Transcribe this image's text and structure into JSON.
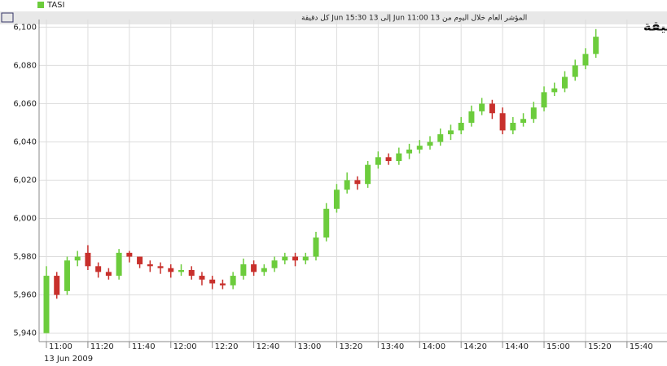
{
  "chart_data": {
    "type": "candlestick",
    "legend": "TASI",
    "subtitle": "المؤشر العام خلال اليوم  من 13 Jun 11:00 إلى 13 Jun 15:30  كل دقيقة",
    "title": "اداء المؤشر العام خلال جلسة أمس(شموع) كل دقيقة",
    "date_label": "13 Jun 2009",
    "up_color": "#6ccc3c",
    "down_color": "#c8302c",
    "grid": true,
    "categories": [
      "11:00",
      null,
      null,
      null,
      "11:20",
      null,
      null,
      null,
      "11:40",
      null,
      null,
      null,
      "12:00",
      null,
      null,
      null,
      "12:20",
      null,
      null,
      null,
      "12:40",
      null,
      null,
      null,
      "13:00",
      null,
      null,
      null,
      "13:20",
      null,
      null,
      null,
      "13:40",
      null,
      null,
      null,
      "14:00",
      null,
      null,
      null,
      "14:20",
      null,
      null,
      null,
      "14:40",
      null,
      null,
      null,
      "15:00",
      null,
      null,
      null,
      "15:20",
      null,
      null,
      null,
      "15:40",
      null
    ],
    "open": [
      5940,
      5970,
      5962,
      5978,
      5982,
      5975,
      5972,
      5970,
      5982,
      5980,
      5976,
      5975,
      5974,
      5972,
      5973,
      5970,
      5968,
      5966,
      5965,
      5970,
      5976,
      5972,
      5974,
      5978,
      5980,
      5978,
      5980,
      5990,
      6005,
      6015,
      6020,
      6018,
      6028,
      6032,
      6030,
      6034,
      6036,
      6038,
      6040,
      6044,
      6046,
      6050,
      6056,
      6060,
      6055,
      6046,
      6050,
      6052,
      6058,
      6066,
      6068,
      6074,
      6080,
      6086,
      null,
      null,
      null,
      null
    ],
    "high": [
      5975,
      5972,
      5980,
      5983,
      5986,
      5977,
      5974,
      5984,
      5983,
      5980,
      5978,
      5977,
      5976,
      5976,
      5975,
      5972,
      5970,
      5968,
      5972,
      5979,
      5978,
      5976,
      5980,
      5982,
      5982,
      5982,
      5993,
      6008,
      6018,
      6024,
      6022,
      6030,
      6035,
      6034,
      6037,
      6039,
      6041,
      6043,
      6047,
      6049,
      6053,
      6059,
      6063,
      6062,
      6058,
      6053,
      6055,
      6061,
      6069,
      6071,
      6077,
      6083,
      6089,
      6099,
      null,
      null,
      null,
      null
    ],
    "low": [
      5940,
      5958,
      5960,
      5975,
      5973,
      5969,
      5968,
      5968,
      5977,
      5974,
      5972,
      5971,
      5969,
      5970,
      5968,
      5965,
      5963,
      5963,
      5963,
      5968,
      5970,
      5970,
      5972,
      5976,
      5975,
      5976,
      5978,
      5988,
      6003,
      6013,
      6015,
      6016,
      6026,
      6028,
      6028,
      6031,
      6034,
      6036,
      6038,
      6041,
      6044,
      6048,
      6054,
      6052,
      6044,
      6044,
      6048,
      6050,
      6056,
      6064,
      6066,
      6072,
      6078,
      6084,
      null,
      null,
      null,
      null
    ],
    "close": [
      5970,
      5960,
      5978,
      5980,
      5975,
      5972,
      5970,
      5982,
      5980,
      5976,
      5975,
      5974,
      5972,
      5973,
      5970,
      5968,
      5966,
      5965,
      5970,
      5976,
      5972,
      5974,
      5978,
      5980,
      5978,
      5980,
      5990,
      6005,
      6015,
      6020,
      6018,
      6028,
      6032,
      6030,
      6034,
      6036,
      6038,
      6040,
      6044,
      6046,
      6050,
      6056,
      6060,
      6055,
      6046,
      6050,
      6052,
      6058,
      6066,
      6068,
      6074,
      6080,
      6086,
      6095,
      null,
      null,
      null,
      null
    ],
    "ylim": [
      5936,
      6104
    ],
    "yticks": [
      {
        "value": 5940,
        "label": "5,940"
      },
      {
        "value": 5960,
        "label": "5,960"
      },
      {
        "value": 5980,
        "label": "5,980"
      },
      {
        "value": 6000,
        "label": "6,000"
      },
      {
        "value": 6020,
        "label": "6,020"
      },
      {
        "value": 6040,
        "label": "6,040"
      },
      {
        "value": 6060,
        "label": "6,060"
      },
      {
        "value": 6080,
        "label": "6,080"
      },
      {
        "value": 6100,
        "label": "6,100"
      }
    ]
  }
}
